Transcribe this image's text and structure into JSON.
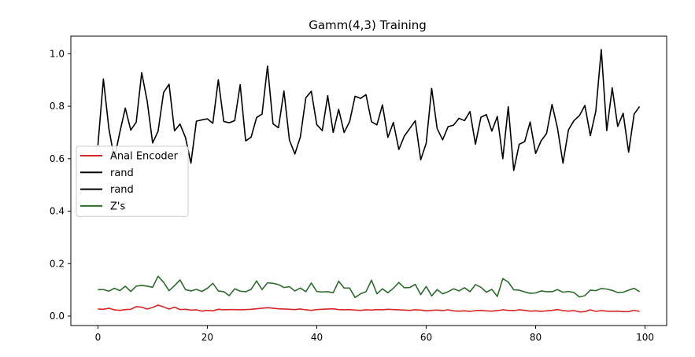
{
  "chart_data": {
    "type": "line",
    "title": "Gamm(4,3) Training",
    "xlabel": "",
    "ylabel": "",
    "xlim": [
      -4.95,
      103.95
    ],
    "ylim": [
      -0.036,
      1.067
    ],
    "x_ticks": [
      0,
      20,
      40,
      60,
      80,
      100
    ],
    "y_ticks": [
      0.0,
      0.2,
      0.4,
      0.6,
      0.8,
      1.0
    ],
    "x_tick_labels": [
      "0",
      "20",
      "40",
      "60",
      "80",
      "100"
    ],
    "y_tick_labels": [
      "0.0",
      "0.2",
      "0.4",
      "0.6",
      "0.8",
      "1.0"
    ],
    "grid": false,
    "legend_position": "center-left",
    "series": [
      {
        "name": "Anal Encoder",
        "color": "#d62728",
        "values": [
          0.027,
          0.026,
          0.03,
          0.024,
          0.022,
          0.025,
          0.026,
          0.036,
          0.034,
          0.027,
          0.033,
          0.042,
          0.035,
          0.027,
          0.034,
          0.025,
          0.026,
          0.023,
          0.024,
          0.019,
          0.022,
          0.02,
          0.026,
          0.024,
          0.025,
          0.025,
          0.024,
          0.025,
          0.026,
          0.028,
          0.03,
          0.032,
          0.03,
          0.028,
          0.027,
          0.026,
          0.025,
          0.027,
          0.024,
          0.022,
          0.025,
          0.026,
          0.027,
          0.028,
          0.025,
          0.024,
          0.025,
          0.023,
          0.022,
          0.024,
          0.023,
          0.025,
          0.024,
          0.026,
          0.025,
          0.024,
          0.023,
          0.022,
          0.024,
          0.023,
          0.02,
          0.022,
          0.023,
          0.021,
          0.024,
          0.02,
          0.019,
          0.02,
          0.018,
          0.021,
          0.022,
          0.02,
          0.019,
          0.021,
          0.024,
          0.022,
          0.021,
          0.024,
          0.022,
          0.019,
          0.02,
          0.018,
          0.02,
          0.022,
          0.025,
          0.021,
          0.019,
          0.021,
          0.016,
          0.017,
          0.024,
          0.018,
          0.021,
          0.019,
          0.018,
          0.019,
          0.017,
          0.017,
          0.022,
          0.018
        ]
      },
      {
        "name": "rand",
        "color": "#000000",
        "values": [
          0.651,
          0.904,
          0.715,
          0.6,
          0.7,
          0.793,
          0.709,
          0.739,
          0.928,
          0.82,
          0.66,
          0.705,
          0.852,
          0.884,
          0.706,
          0.732,
          0.681,
          0.583,
          0.743,
          0.748,
          0.752,
          0.735,
          0.901,
          0.742,
          0.737,
          0.745,
          0.882,
          0.668,
          0.682,
          0.757,
          0.77,
          0.953,
          0.733,
          0.718,
          0.858,
          0.671,
          0.618,
          0.683,
          0.832,
          0.857,
          0.73,
          0.707,
          0.84,
          0.7,
          0.788,
          0.7,
          0.741,
          0.838,
          0.83,
          0.844,
          0.741,
          0.729,
          0.805,
          0.681,
          0.738,
          0.635,
          0.686,
          0.715,
          0.745,
          0.596,
          0.659,
          0.868,
          0.715,
          0.672,
          0.722,
          0.728,
          0.754,
          0.745,
          0.78,
          0.655,
          0.758,
          0.768,
          0.705,
          0.761,
          0.6,
          0.798,
          0.555,
          0.655,
          0.665,
          0.74,
          0.62,
          0.668,
          0.696,
          0.807,
          0.716,
          0.583,
          0.71,
          0.745,
          0.764,
          0.803,
          0.688,
          0.781,
          1.016,
          0.707,
          0.87,
          0.723,
          0.773,
          0.625,
          0.77,
          0.799
        ]
      },
      {
        "name": "rand",
        "color": "#000000",
        "values": []
      },
      {
        "name": "Z's",
        "color": "#2f6b2f",
        "values": [
          0.101,
          0.101,
          0.095,
          0.106,
          0.097,
          0.114,
          0.094,
          0.114,
          0.117,
          0.114,
          0.11,
          0.152,
          0.129,
          0.097,
          0.116,
          0.138,
          0.101,
          0.096,
          0.102,
          0.094,
          0.106,
          0.125,
          0.096,
          0.093,
          0.078,
          0.104,
          0.095,
          0.093,
          0.102,
          0.134,
          0.101,
          0.127,
          0.125,
          0.12,
          0.109,
          0.112,
          0.096,
          0.107,
          0.093,
          0.126,
          0.094,
          0.092,
          0.093,
          0.089,
          0.133,
          0.107,
          0.107,
          0.071,
          0.085,
          0.093,
          0.137,
          0.085,
          0.104,
          0.089,
          0.106,
          0.128,
          0.108,
          0.109,
          0.121,
          0.082,
          0.113,
          0.077,
          0.101,
          0.085,
          0.093,
          0.104,
          0.096,
          0.108,
          0.093,
          0.12,
          0.11,
          0.091,
          0.102,
          0.075,
          0.143,
          0.13,
          0.1,
          0.099,
          0.092,
          0.087,
          0.088,
          0.096,
          0.093,
          0.093,
          0.101,
          0.091,
          0.094,
          0.09,
          0.073,
          0.078,
          0.099,
          0.097,
          0.105,
          0.103,
          0.098,
          0.09,
          0.091,
          0.099,
          0.106,
          0.093
        ]
      }
    ]
  }
}
